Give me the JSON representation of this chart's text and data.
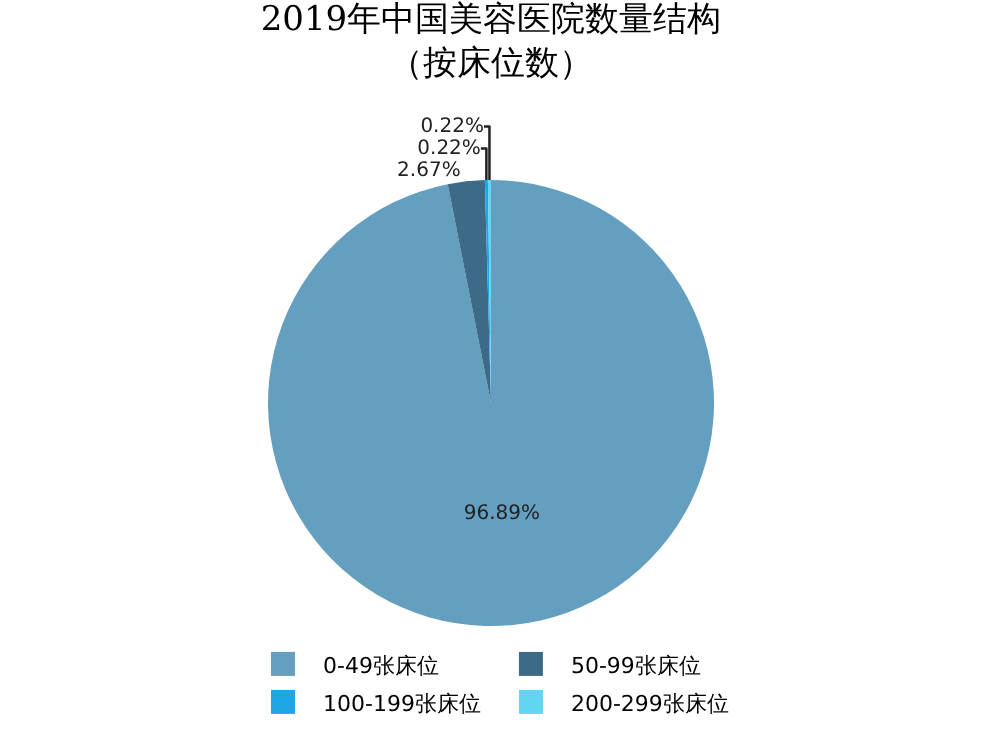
{
  "chart_data": {
    "type": "pie",
    "title": "2019年中国美容医院数量结构",
    "subtitle": "（按床位数）",
    "categories": [
      "0-49张床位",
      "50-99张床位",
      "100-199张床位",
      "200-299张床位"
    ],
    "values": [
      96.89,
      2.67,
      0.22,
      0.22
    ],
    "colors": [
      "#659fc0",
      "#3d6a87",
      "#1ea6e6",
      "#62d4f4"
    ],
    "value_labels": [
      "96.89%",
      "2.67%",
      "0.22%",
      "0.22%"
    ],
    "legend": "bottom"
  }
}
